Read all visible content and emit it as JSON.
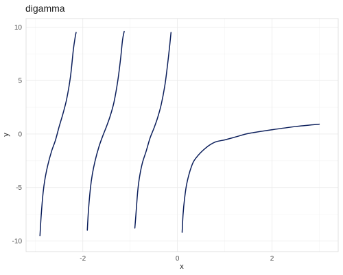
{
  "chart_data": {
    "type": "line",
    "title": "digamma",
    "xlabel": "x",
    "ylabel": "y",
    "xlim": [
      -3.2,
      3.4
    ],
    "ylim": [
      -11.0,
      10.8
    ],
    "x_ticks": [
      -2,
      0,
      2
    ],
    "x_tick_labels": [
      "-2",
      "0",
      "2"
    ],
    "y_ticks": [
      -10,
      -5,
      0,
      5,
      10
    ],
    "y_tick_labels": [
      "-10",
      "-5",
      "0",
      "5",
      "10"
    ],
    "grid": true,
    "legend": false,
    "series_color": "#0b1e5b",
    "series": [
      {
        "segment": "branch-1",
        "x": [
          -2.906,
          -2.88,
          -2.84,
          -2.8,
          -2.74,
          -2.66,
          -2.58,
          -2.5,
          -2.42,
          -2.34,
          -2.26,
          -2.2,
          -2.16,
          -2.142
        ],
        "y": [
          -9.5,
          -7.6,
          -5.5,
          -4.2,
          -2.9,
          -1.6,
          -0.6,
          0.7,
          1.9,
          3.3,
          5.4,
          7.9,
          9.1,
          9.5
        ]
      },
      {
        "segment": "branch-2",
        "x": [
          -1.905,
          -1.88,
          -1.84,
          -1.8,
          -1.74,
          -1.66,
          -1.58,
          -1.5,
          -1.42,
          -1.34,
          -1.26,
          -1.2,
          -1.16,
          -1.125
        ],
        "y": [
          -9.0,
          -7.1,
          -5.1,
          -3.8,
          -2.5,
          -1.2,
          -0.2,
          0.7,
          1.7,
          3.0,
          5.0,
          7.1,
          8.8,
          9.6
        ]
      },
      {
        "segment": "branch-3",
        "x": [
          -0.9,
          -0.88,
          -0.84,
          -0.8,
          -0.74,
          -0.66,
          -0.58,
          -0.5,
          -0.42,
          -0.34,
          -0.26,
          -0.2,
          -0.16,
          -0.135
        ],
        "y": [
          -8.8,
          -7.7,
          -5.4,
          -4.0,
          -2.7,
          -1.6,
          -0.4,
          0.5,
          1.5,
          2.8,
          4.7,
          6.8,
          8.4,
          9.5
        ]
      },
      {
        "segment": "branch-4",
        "x": [
          0.1,
          0.12,
          0.15,
          0.2,
          0.3,
          0.4,
          0.6,
          0.8,
          1.0,
          1.25,
          1.5,
          2.0,
          2.5,
          3.0
        ],
        "y": [
          -9.2,
          -7.5,
          -6.1,
          -4.6,
          -3.0,
          -2.2,
          -1.3,
          -0.75,
          -0.55,
          -0.25,
          0.05,
          0.4,
          0.7,
          0.92
        ]
      }
    ]
  }
}
